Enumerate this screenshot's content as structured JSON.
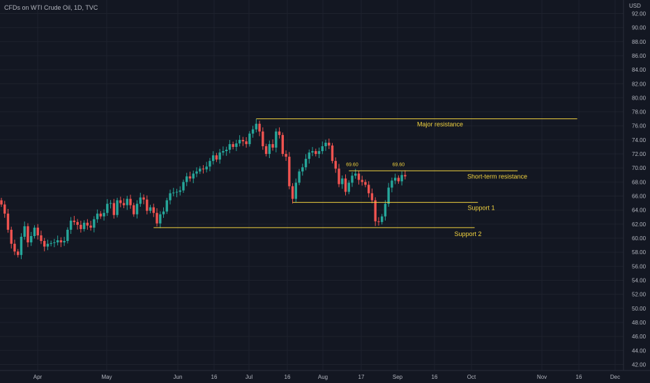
{
  "header": {
    "title": "CFDs on WTI Crude Oil, 1D, TVC",
    "unit": "USD"
  },
  "colors": {
    "background": "#131722",
    "grid": "#1e222d",
    "up": "#26a69a",
    "down": "#ef5350",
    "level": "#f2d33f",
    "text": "#b2b5be"
  },
  "chart_data": {
    "type": "candlestick",
    "ylim": [
      41,
      95
    ],
    "yticks": [
      "42.00",
      "44.00",
      "46.00",
      "48.00",
      "50.00",
      "52.00",
      "54.00",
      "56.00",
      "58.00",
      "60.00",
      "62.00",
      "64.00",
      "66.00",
      "68.00",
      "70.00",
      "72.00",
      "74.00",
      "76.00",
      "78.00",
      "80.00",
      "82.00",
      "84.00",
      "86.00",
      "88.00",
      "90.00",
      "92.00"
    ],
    "xticks": [
      "Apr",
      "May",
      "Jun",
      "16",
      "Jul",
      "16",
      "Aug",
      "17",
      "Sep",
      "16",
      "Oct",
      "Nov",
      "16",
      "Dec"
    ],
    "grid": true,
    "close_series": [
      64.8,
      63.5,
      61.2,
      59.2,
      58.1,
      57.6,
      60.2,
      61.7,
      59.4,
      60.3,
      61.5,
      60.4,
      59.6,
      58.8,
      59.2,
      59.3,
      59.4,
      59.7,
      59.4,
      59.6,
      61.2,
      62.5,
      62.3,
      61.9,
      61.3,
      62.2,
      61.8,
      61.5,
      62.7,
      63.5,
      63.1,
      63.6,
      64.9,
      65.0,
      63.3,
      65.4,
      65.0,
      64.7,
      65.6,
      64.7,
      63.4,
      64.9,
      65.8,
      65.5,
      63.9,
      64.4,
      63.6,
      62.1,
      63.4,
      63.8,
      65.4,
      66.4,
      66.5,
      66.6,
      66.8,
      68.0,
      68.8,
      68.5,
      69.2,
      69.5,
      69.9,
      69.8,
      70.2,
      71.0,
      71.8,
      71.2,
      72.2,
      72.4,
      72.6,
      73.4,
      73.0,
      73.5,
      74.0,
      73.8,
      73.4,
      74.9,
      75.5,
      76.3,
      75.2,
      73.1,
      72.0,
      73.4,
      72.9,
      75.2,
      74.7,
      72.0,
      71.6,
      67.4,
      65.6,
      67.9,
      69.5,
      70.1,
      71.3,
      72.2,
      72.4,
      72.0,
      72.4,
      73.1,
      73.6,
      73.2,
      71.0,
      69.9,
      67.7,
      68.5,
      66.6,
      67.9,
      68.9,
      69.2,
      68.3,
      68.0,
      67.6,
      66.4,
      65.4,
      62.4,
      62.3,
      63.1,
      64.9,
      67.2,
      68.2,
      68.6,
      68.1,
      69.0,
      68.8
    ],
    "series": [
      {
        "label": "Major resistance",
        "price": 77.0,
        "start_index": 77,
        "end_index": 174
      },
      {
        "label": "Short-term resistance",
        "price": 69.6,
        "start_index": 105,
        "end_index": 156
      },
      {
        "label": "Support 1",
        "price": 65.1,
        "start_index": 88,
        "end_index": 144
      },
      {
        "label": "Support 2",
        "price": 61.5,
        "start_index": 46,
        "end_index": 143
      }
    ],
    "annotations": [
      {
        "text": "69.60",
        "index": 106,
        "price": 69.6
      },
      {
        "text": "69.60",
        "index": 120,
        "price": 69.6
      }
    ]
  }
}
